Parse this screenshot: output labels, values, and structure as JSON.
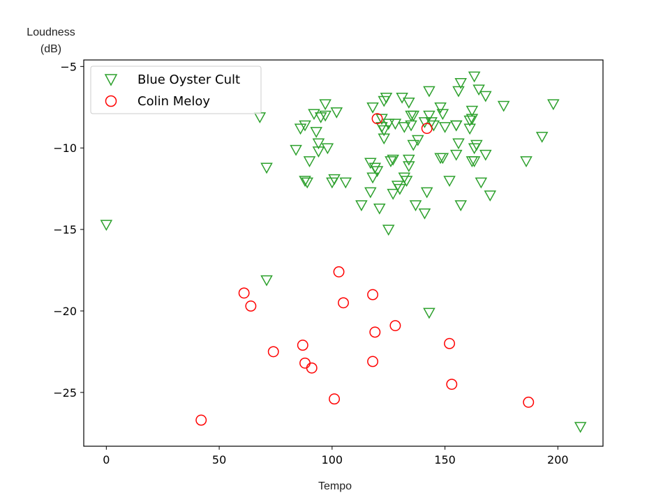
{
  "chart_data": {
    "type": "scatter",
    "title": "",
    "xlabel": "Tempo",
    "ylabel_line1": "Loudness",
    "ylabel_line2": "(dB)",
    "xlim": [
      -10,
      220
    ],
    "ylim": [
      -28.3,
      -4.6
    ],
    "xticks": [
      0,
      50,
      100,
      150,
      200
    ],
    "yticks": [
      -25,
      -20,
      -15,
      -10,
      -5
    ],
    "xtick_labels": [
      "0",
      "50",
      "100",
      "150",
      "200"
    ],
    "ytick_labels": [
      "−25",
      "−20",
      "−15",
      "−10",
      "−5"
    ],
    "grid": false,
    "legend_position": "top-left",
    "series": [
      {
        "name": "Blue Oyster Cult",
        "marker": "triangle-down",
        "color": "#2ca02c",
        "points": [
          [
            0,
            -14.7
          ],
          [
            68,
            -8.1
          ],
          [
            71,
            -11.2
          ],
          [
            71,
            -18.1
          ],
          [
            84,
            -10.1
          ],
          [
            86,
            -8.8
          ],
          [
            88,
            -8.6
          ],
          [
            88,
            -12.0
          ],
          [
            89,
            -12.1
          ],
          [
            90,
            -10.8
          ],
          [
            92,
            -7.9
          ],
          [
            93,
            -9.0
          ],
          [
            94,
            -9.7
          ],
          [
            94,
            -10.2
          ],
          [
            95,
            -8.1
          ],
          [
            97,
            -8.0
          ],
          [
            97,
            -7.3
          ],
          [
            98,
            -10.0
          ],
          [
            100,
            -12.1
          ],
          [
            101,
            -11.9
          ],
          [
            102,
            -7.8
          ],
          [
            106,
            -12.1
          ],
          [
            113,
            -13.5
          ],
          [
            117,
            -12.7
          ],
          [
            117,
            -10.9
          ],
          [
            118,
            -11.8
          ],
          [
            118,
            -7.5
          ],
          [
            119,
            -11.2
          ],
          [
            120,
            -11.4
          ],
          [
            121,
            -13.7
          ],
          [
            122,
            -8.2
          ],
          [
            122,
            -8.7
          ],
          [
            123,
            -9.4
          ],
          [
            123,
            -8.9
          ],
          [
            123,
            -7.1
          ],
          [
            124,
            -6.9
          ],
          [
            125,
            -8.5
          ],
          [
            125,
            -15.0
          ],
          [
            126,
            -10.8
          ],
          [
            127,
            -10.7
          ],
          [
            127,
            -12.8
          ],
          [
            128,
            -8.5
          ],
          [
            129,
            -12.3
          ],
          [
            130,
            -12.5
          ],
          [
            131,
            -6.9
          ],
          [
            132,
            -8.7
          ],
          [
            132,
            -11.8
          ],
          [
            133,
            -12.0
          ],
          [
            134,
            -7.2
          ],
          [
            134,
            -10.7
          ],
          [
            134,
            -11.1
          ],
          [
            135,
            -8.0
          ],
          [
            135,
            -8.6
          ],
          [
            136,
            -9.8
          ],
          [
            136,
            -8.0
          ],
          [
            137,
            -13.5
          ],
          [
            138,
            -9.5
          ],
          [
            141,
            -8.4
          ],
          [
            141,
            -14.0
          ],
          [
            142,
            -12.7
          ],
          [
            143,
            -20.1
          ],
          [
            143,
            -6.5
          ],
          [
            143,
            -8.0
          ],
          [
            144,
            -8.4
          ],
          [
            145,
            -8.6
          ],
          [
            148,
            -10.6
          ],
          [
            148,
            -7.5
          ],
          [
            149,
            -10.6
          ],
          [
            149,
            -7.9
          ],
          [
            150,
            -8.7
          ],
          [
            152,
            -12.0
          ],
          [
            155,
            -8.6
          ],
          [
            155,
            -8.6
          ],
          [
            155,
            -10.4
          ],
          [
            156,
            -9.7
          ],
          [
            156,
            -6.5
          ],
          [
            157,
            -6.0
          ],
          [
            157,
            -13.5
          ],
          [
            161,
            -8.3
          ],
          [
            161,
            -8.8
          ],
          [
            162,
            -8.2
          ],
          [
            162,
            -10.8
          ],
          [
            162,
            -7.7
          ],
          [
            163,
            -5.6
          ],
          [
            163,
            -10.8
          ],
          [
            163,
            -10.0
          ],
          [
            164,
            -9.8
          ],
          [
            165,
            -6.4
          ],
          [
            166,
            -12.1
          ],
          [
            168,
            -6.8
          ],
          [
            168,
            -10.4
          ],
          [
            170,
            -12.9
          ],
          [
            176,
            -7.4
          ],
          [
            186,
            -10.8
          ],
          [
            193,
            -9.3
          ],
          [
            198,
            -7.3
          ],
          [
            210,
            -27.1
          ]
        ]
      },
      {
        "name": "Colin Meloy",
        "marker": "circle",
        "color": "#ff0000",
        "points": [
          [
            42,
            -26.7
          ],
          [
            61,
            -18.9
          ],
          [
            64,
            -19.7
          ],
          [
            74,
            -22.5
          ],
          [
            87,
            -22.1
          ],
          [
            88,
            -23.2
          ],
          [
            91,
            -23.5
          ],
          [
            101,
            -25.4
          ],
          [
            103,
            -17.6
          ],
          [
            105,
            -19.5
          ],
          [
            118,
            -19.0
          ],
          [
            118,
            -23.1
          ],
          [
            119,
            -21.3
          ],
          [
            120,
            -8.2
          ],
          [
            128,
            -20.9
          ],
          [
            142,
            -8.8
          ],
          [
            152,
            -22.0
          ],
          [
            153,
            -24.5
          ],
          [
            187,
            -25.6
          ]
        ]
      }
    ]
  }
}
